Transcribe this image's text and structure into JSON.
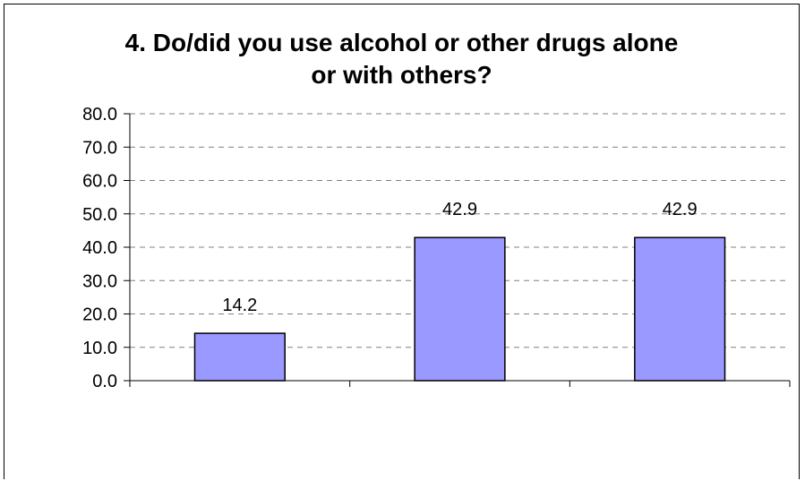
{
  "chart_data": {
    "type": "bar",
    "title_lines": [
      "4. Do/did you use alcohol or other drugs alone",
      "or with others?"
    ],
    "categories": [
      "",
      "",
      ""
    ],
    "values": [
      14.2,
      42.9,
      42.9
    ],
    "data_labels": [
      "14.2",
      "42.9",
      "42.9"
    ],
    "xlabel": "",
    "ylabel": "",
    "ylim": [
      0,
      80
    ],
    "y_ticks": [
      "0.0",
      "10.0",
      "20.0",
      "30.0",
      "40.0",
      "50.0",
      "60.0",
      "70.0",
      "80.0"
    ],
    "grid": "dashed horizontal",
    "legend": "none",
    "colors": {
      "bar_fill": "#9999ff",
      "bar_stroke": "#000000",
      "grid": "#808080",
      "axis": "#000000"
    }
  }
}
